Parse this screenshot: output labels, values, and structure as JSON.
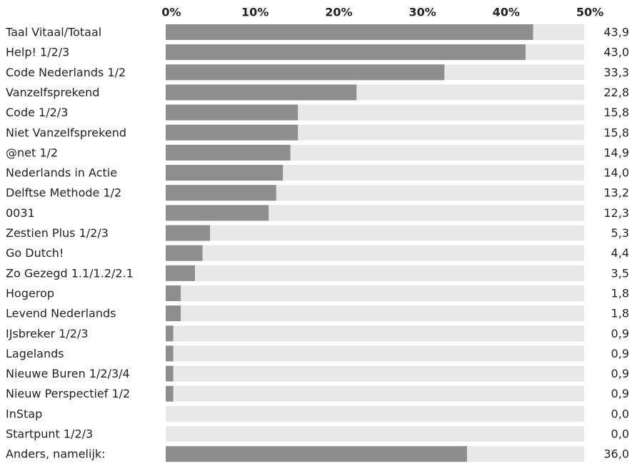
{
  "chart_data": {
    "type": "bar",
    "orientation": "horizontal",
    "categories": [
      "Taal Vitaal/Totaal",
      "Help! 1/2/3",
      "Code Nederlands 1/2",
      "Vanzelfsprekend",
      "Code 1/2/3",
      "Niet Vanzelfsprekend",
      "@net 1/2",
      "Nederlands in Actie",
      "Delftse Methode 1/2",
      "0031",
      "Zestien Plus 1/2/3",
      "Go Dutch!",
      "Zo Gezegd 1.1/1.2/2.1",
      "Hogerop",
      "Levend Nederlands",
      "IJsbreker 1/2/3",
      "Lagelands",
      "Nieuwe Buren 1/2/3/4",
      "Nieuw Perspectief 1/2",
      "InStap",
      "Startpunt 1/2/3",
      "Anders, namelijk:"
    ],
    "values": [
      43.9,
      43.0,
      33.3,
      22.8,
      15.8,
      15.8,
      14.9,
      14.0,
      13.2,
      12.3,
      5.3,
      4.4,
      3.5,
      1.8,
      1.8,
      0.9,
      0.9,
      0.9,
      0.9,
      0.0,
      0.0,
      36.0
    ],
    "value_labels": [
      "43,9",
      "43,0",
      "33,3",
      "22,8",
      "15,8",
      "15,8",
      "14,9",
      "14,0",
      "13,2",
      "12,3",
      "5,3",
      "4,4",
      "3,5",
      "1,8",
      "1,8",
      "0,9",
      "0,9",
      "0,9",
      "0,9",
      "0,0",
      "0,0",
      "36,0"
    ],
    "color": "#8e8e8e",
    "xlim": [
      0,
      50
    ],
    "xticks": [
      {
        "value": 0,
        "label": "0%"
      },
      {
        "value": 10,
        "label": "10%"
      },
      {
        "value": 20,
        "label": "20%"
      },
      {
        "value": 30,
        "label": "30%"
      },
      {
        "value": 40,
        "label": "40%"
      },
      {
        "value": 50,
        "label": "50%"
      }
    ]
  }
}
